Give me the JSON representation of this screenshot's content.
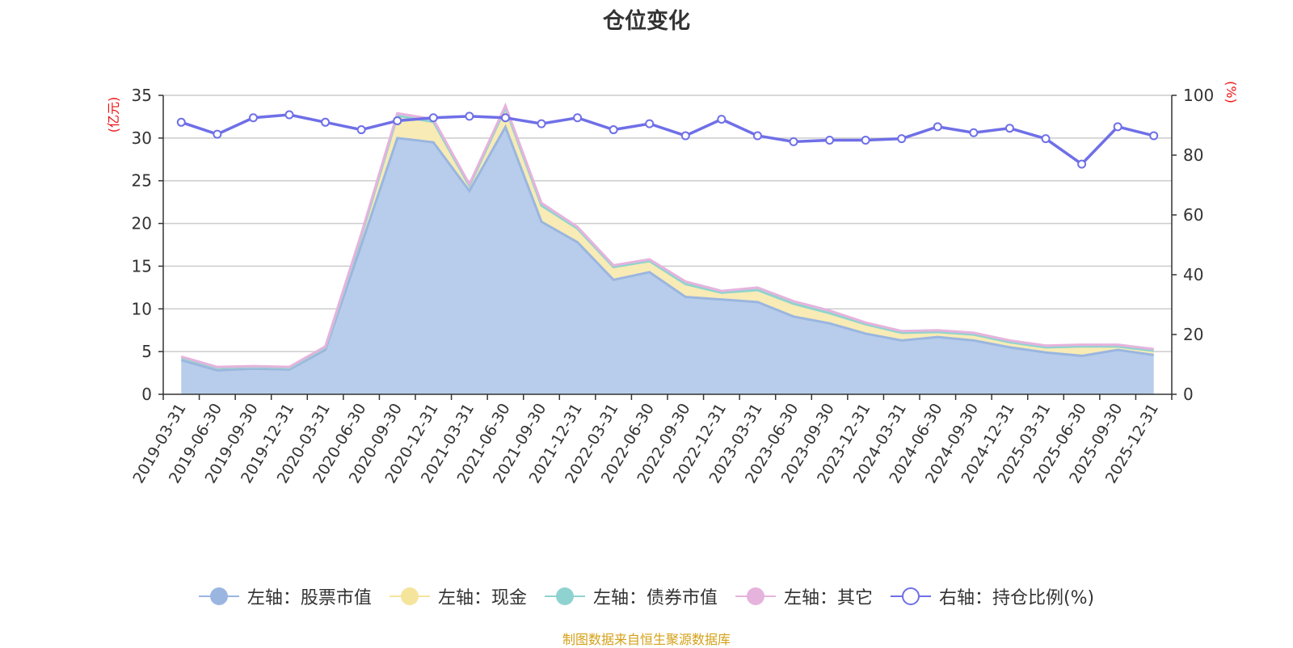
{
  "chart_data": {
    "type": "area",
    "title": "仓位变化",
    "left_axis_unit": "(亿元)",
    "right_axis_unit": "(%)",
    "left_ylim": [
      0,
      35
    ],
    "left_yticks": [
      0,
      5,
      10,
      15,
      20,
      25,
      30,
      35
    ],
    "right_ylim": [
      0,
      100
    ],
    "right_yticks": [
      0,
      20,
      40,
      60,
      80,
      100
    ],
    "grid": true,
    "legend_position": "bottom",
    "categories": [
      "2019-03-31",
      "2019-06-30",
      "2019-09-30",
      "2019-12-31",
      "2020-03-31",
      "2020-06-30",
      "2020-09-30",
      "2020-12-31",
      "2021-03-31",
      "2021-06-30",
      "2021-09-30",
      "2021-12-31",
      "2022-03-31",
      "2022-06-30",
      "2022-09-30",
      "2022-12-31",
      "2023-03-31",
      "2023-06-30",
      "2023-09-30",
      "2023-12-31",
      "2024-03-31",
      "2024-06-30",
      "2024-09-30",
      "2024-12-31",
      "2025-03-31",
      "2025-06-30",
      "2025-09-30",
      "2025-12-31"
    ],
    "series": [
      {
        "name": "左轴：股票市值",
        "axis": "left",
        "color": "#9ab6e0",
        "fill": "#b8cdeb",
        "values": [
          4.0,
          2.8,
          3.0,
          2.9,
          5.2,
          17.5,
          30.0,
          29.5,
          23.8,
          31.3,
          20.2,
          17.8,
          13.4,
          14.3,
          11.4,
          11.1,
          10.8,
          9.1,
          8.3,
          7.1,
          6.3,
          6.7,
          6.3,
          5.5,
          4.9,
          4.5,
          5.2,
          4.6
        ]
      },
      {
        "name": "左轴：现金",
        "axis": "left",
        "color": "#f5e49c",
        "fill": "#f8ebb5",
        "values": [
          0.3,
          0.3,
          0.2,
          0.2,
          0.3,
          1.0,
          2.6,
          2.4,
          0.6,
          2.2,
          1.9,
          1.6,
          1.5,
          1.3,
          1.5,
          0.8,
          1.4,
          1.5,
          1.2,
          1.1,
          0.9,
          0.6,
          0.7,
          0.6,
          0.6,
          1.1,
          0.4,
          0.5
        ]
      },
      {
        "name": "左轴：债券市值",
        "axis": "left",
        "color": "#8fd3d0",
        "fill": "#b5e3e1",
        "values": [
          0,
          0,
          0,
          0,
          0,
          0,
          0,
          0,
          0,
          0,
          0,
          0,
          0,
          0,
          0,
          0,
          0,
          0,
          0,
          0,
          0,
          0,
          0,
          0,
          0,
          0,
          0,
          0
        ]
      },
      {
        "name": "左轴：其它",
        "axis": "left",
        "color": "#e6b3dd",
        "fill": "#f0cdea",
        "values": [
          0.1,
          0.1,
          0.1,
          0.1,
          0.1,
          0.3,
          0.3,
          0.3,
          0.2,
          0.3,
          0.3,
          0.2,
          0.2,
          0.2,
          0.3,
          0.2,
          0.3,
          0.3,
          0.3,
          0.2,
          0.2,
          0.2,
          0.2,
          0.2,
          0.2,
          0.2,
          0.2,
          0.2
        ]
      },
      {
        "name": "右轴：持仓比例(%)",
        "axis": "right",
        "color": "#6f6fe8",
        "values": [
          91,
          87,
          92.5,
          93.5,
          91,
          88.5,
          91.5,
          92.5,
          93,
          92.5,
          90.5,
          92.5,
          88.5,
          90.5,
          86.5,
          92,
          86.5,
          84.5,
          85,
          85,
          85.5,
          89.5,
          87.5,
          89,
          85.5,
          77,
          89.5,
          86.5
        ]
      }
    ]
  },
  "source_note": "制图数据来自恒生聚源数据库"
}
